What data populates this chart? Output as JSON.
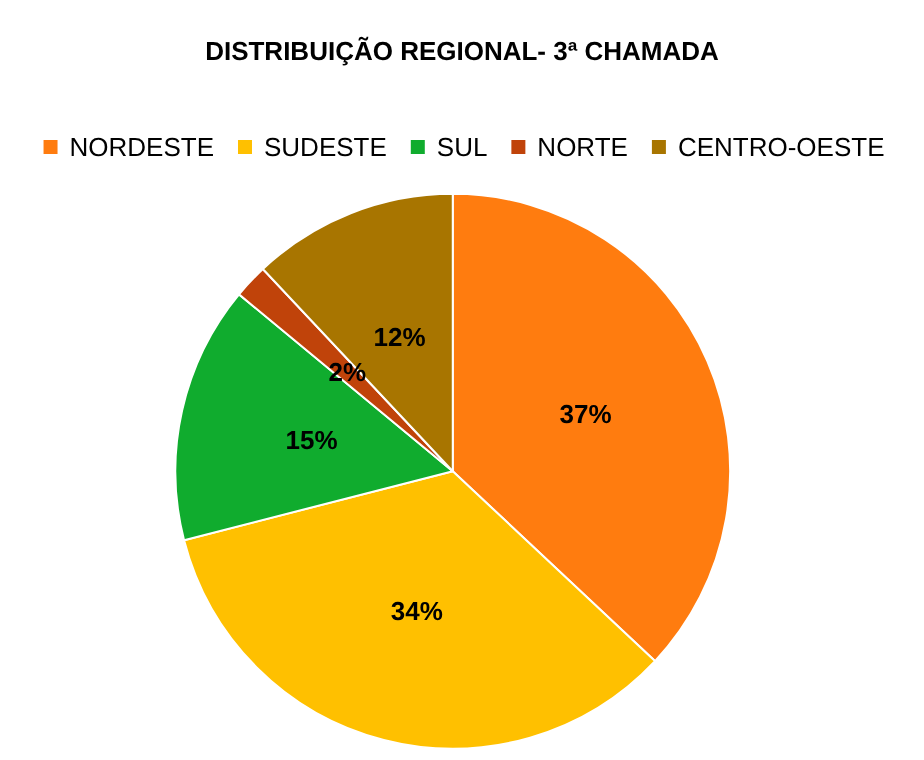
{
  "chart_data": {
    "type": "pie",
    "title": "DISTRIBUIÇÃO REGIONAL- 3ª CHAMADA",
    "categories": [
      "NORDESTE",
      "SUDESTE",
      "SUL",
      "NORTE",
      "CENTRO-OESTE"
    ],
    "values": [
      37,
      34,
      15,
      2,
      12
    ],
    "colors": [
      "#ff7c0f",
      "#ffc000",
      "#10ac2e",
      "#c0430a",
      "#a87500"
    ],
    "value_labels": [
      "37%",
      "34%",
      "15%",
      "2%",
      "12%"
    ],
    "legend": "top"
  }
}
